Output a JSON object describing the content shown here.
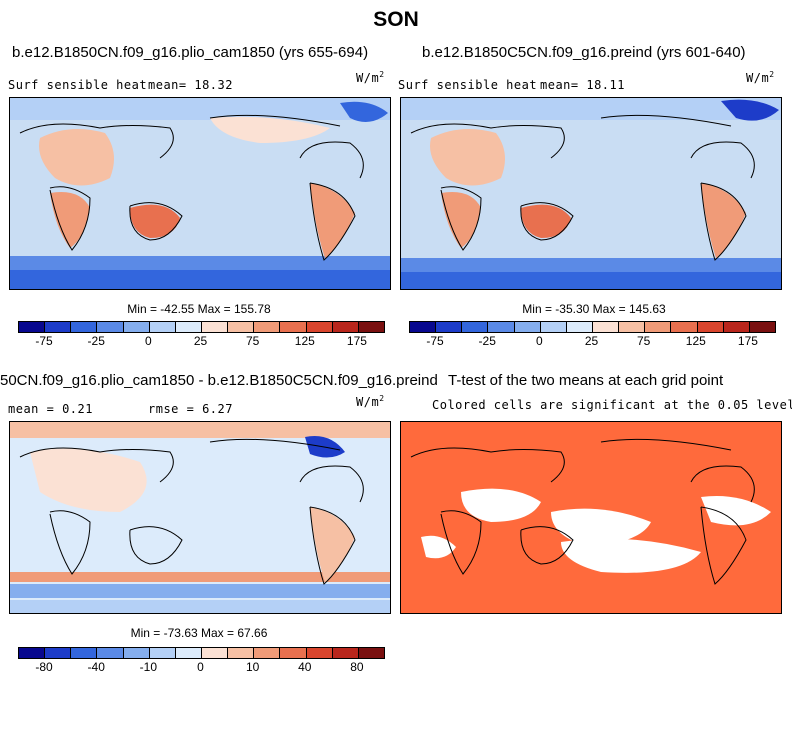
{
  "figure": {
    "season": "SON"
  },
  "panels": [
    {
      "case_title": "b.e12.B1850CN.f09_g16.plio_cam1850 (yrs 655-694)",
      "variable": "Surf sensible heat",
      "stat_text": "mean=  18.32",
      "units": "W/m",
      "units_exp": "2",
      "minmax": "Min = -42.55 Max = 155.78",
      "cbar_ticks": [
        "-75",
        "-25",
        "0",
        "25",
        "75",
        "125",
        "175"
      ],
      "cbar_colors": [
        "#08088f",
        "#1d3cc9",
        "#3366dd",
        "#5b8ae6",
        "#85aeee",
        "#b4d0f6",
        "#dcebfb",
        "#fbe1d4",
        "#f6c0a4",
        "#f09b78",
        "#e8704f",
        "#d9452d",
        "#b9261c",
        "#7a1010"
      ]
    },
    {
      "case_title": "b.e12.B1850C5CN.f09_g16.preind (yrs 601-640)",
      "variable": "Surf sensible heat",
      "stat_text": "mean=  18.11",
      "units": "W/m",
      "units_exp": "2",
      "minmax": "Min = -35.30 Max = 145.63",
      "cbar_ticks": [
        "-75",
        "-25",
        "0",
        "25",
        "75",
        "125",
        "175"
      ],
      "cbar_colors": [
        "#08088f",
        "#1d3cc9",
        "#3366dd",
        "#5b8ae6",
        "#85aeee",
        "#b4d0f6",
        "#dcebfb",
        "#fbe1d4",
        "#f6c0a4",
        "#f09b78",
        "#e8704f",
        "#d9452d",
        "#b9261c",
        "#7a1010"
      ]
    },
    {
      "case_title": "50CN.f09_g16.plio_cam1850 - b.e12.B1850C5CN.f09_g16.preind",
      "mean_text": "mean =   0.21",
      "rmse_text": "rmse =   6.27",
      "units": "W/m",
      "units_exp": "2",
      "minmax": "Min = -73.63 Max = 67.66",
      "cbar_ticks": [
        "-80",
        "-40",
        "-10",
        "0",
        "10",
        "40",
        "80"
      ],
      "cbar_colors": [
        "#08088f",
        "#1d3cc9",
        "#3366dd",
        "#5b8ae6",
        "#85aeee",
        "#b4d0f6",
        "#dcebfb",
        "#fbe1d4",
        "#f6c0a4",
        "#f09b78",
        "#e8704f",
        "#d9452d",
        "#b9261c",
        "#7a1010"
      ]
    },
    {
      "case_title": "T-test of the two means at each grid point",
      "subtitle": "Colored cells are significant at the 0.05 level",
      "significance_color": "#ff6a3c"
    }
  ]
}
